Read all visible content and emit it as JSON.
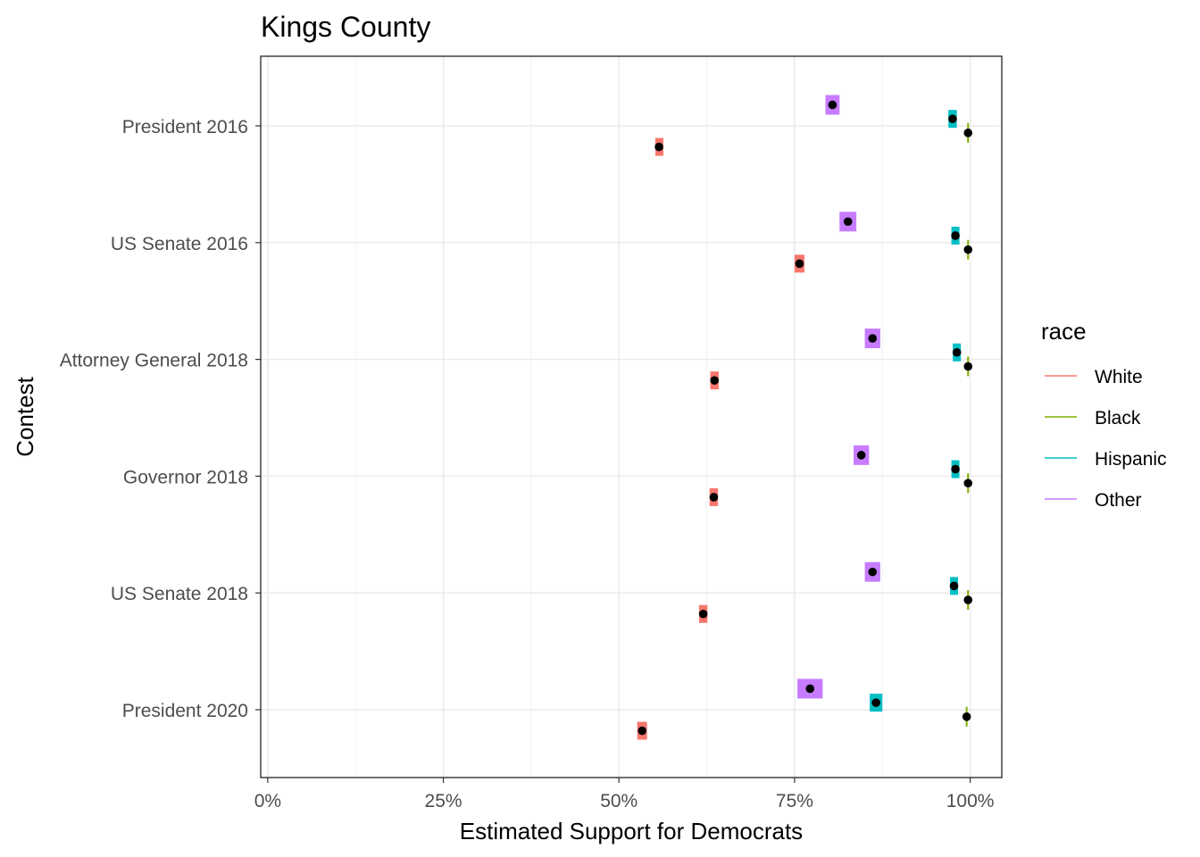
{
  "chart_data": {
    "type": "scatter",
    "title": "Kings County",
    "xlabel": "Estimated Support for Democrats",
    "ylabel": "Contest",
    "xlim": [
      -0.01,
      1.045
    ],
    "x_ticks": [
      {
        "value": 0,
        "label": "0%"
      },
      {
        "value": 0.25,
        "label": "25%"
      },
      {
        "value": 0.5,
        "label": "50%"
      },
      {
        "value": 0.75,
        "label": "75%"
      },
      {
        "value": 1.0,
        "label": "100%"
      }
    ],
    "grid": true,
    "legend": {
      "title": "race",
      "position": "right",
      "entries": [
        {
          "name": "White",
          "color": "#F8766D"
        },
        {
          "name": "Black",
          "color": "#7CAE00"
        },
        {
          "name": "Hispanic",
          "color": "#00BFC4"
        },
        {
          "name": "Other",
          "color": "#C77CFF"
        }
      ]
    },
    "contests": [
      "President 2016",
      "US Senate 2016",
      "Attorney General 2018",
      "Governor 2018",
      "US Senate 2018",
      "President 2020"
    ],
    "series": [
      {
        "name": "White",
        "color": "#F8766D",
        "estimates": [
          0.557,
          0.757,
          0.636,
          0.635,
          0.62,
          0.533
        ],
        "intervals": [
          [
            0.552,
            0.563
          ],
          [
            0.75,
            0.764
          ],
          [
            0.63,
            0.642
          ],
          [
            0.629,
            0.641
          ],
          [
            0.614,
            0.626
          ],
          [
            0.526,
            0.54
          ]
        ]
      },
      {
        "name": "Black",
        "color": "#7CAE00",
        "estimates": [
          0.997,
          0.997,
          0.997,
          0.997,
          0.997,
          0.995
        ],
        "intervals": [
          [
            0.995,
            0.999
          ],
          [
            0.995,
            0.999
          ],
          [
            0.995,
            0.999
          ],
          [
            0.995,
            0.999
          ],
          [
            0.995,
            0.999
          ],
          [
            0.993,
            0.997
          ]
        ]
      },
      {
        "name": "Hispanic",
        "color": "#00BFC4",
        "estimates": [
          0.975,
          0.979,
          0.981,
          0.979,
          0.977,
          0.866
        ],
        "intervals": [
          [
            0.969,
            0.981
          ],
          [
            0.975,
            0.983
          ],
          [
            0.977,
            0.985
          ],
          [
            0.975,
            0.983
          ],
          [
            0.973,
            0.981
          ],
          [
            0.857,
            0.875
          ]
        ]
      },
      {
        "name": "Other",
        "color": "#C77CFF",
        "estimates": [
          0.804,
          0.826,
          0.861,
          0.845,
          0.861,
          0.772
        ],
        "intervals": [
          [
            0.794,
            0.814
          ],
          [
            0.814,
            0.838
          ],
          [
            0.85,
            0.872
          ],
          [
            0.834,
            0.856
          ],
          [
            0.85,
            0.872
          ],
          [
            0.754,
            0.79
          ]
        ]
      }
    ]
  }
}
